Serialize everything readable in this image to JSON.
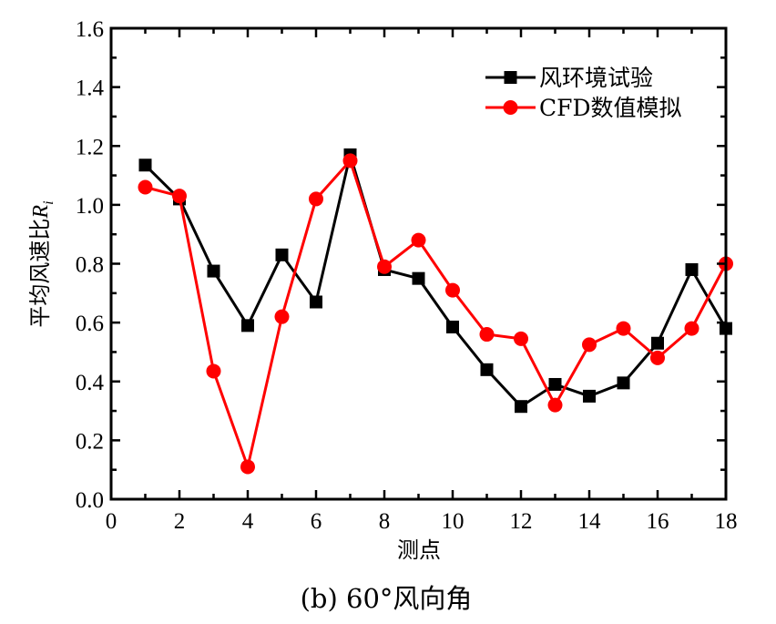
{
  "chart_data": {
    "type": "line",
    "title": "",
    "caption": "(b) 60°风向角",
    "xlabel": "测点",
    "ylabel_main": "平均风速比",
    "ylabel_symbol": "R",
    "ylabel_subscript": "i",
    "xlim": [
      0,
      18.0
    ],
    "ylim": [
      0.0,
      1.6
    ],
    "x_ticks": [
      0,
      2,
      4,
      6,
      8,
      10,
      12,
      14,
      16,
      18
    ],
    "x_tick_labels": [
      "0",
      "2",
      "4",
      "6",
      "8",
      "10",
      "12",
      "14",
      "16",
      "18"
    ],
    "y_ticks": [
      0.0,
      0.2,
      0.4,
      0.6,
      0.8,
      1.0,
      1.2,
      1.4,
      1.6
    ],
    "y_tick_labels": [
      "0.0",
      "0.2",
      "0.4",
      "0.6",
      "0.8",
      "1.0",
      "1.2",
      "1.4",
      "1.6"
    ],
    "x_minor_step": 1,
    "y_minor_step": 0.1,
    "grid": false,
    "legend_position": "top-right",
    "x": [
      1,
      2,
      3,
      4,
      5,
      6,
      7,
      8,
      9,
      10,
      11,
      12,
      13,
      14,
      15,
      16,
      17,
      18
    ],
    "series": [
      {
        "name": "风环境试验",
        "color": "#000000",
        "marker": "square",
        "values": [
          1.135,
          1.02,
          0.775,
          0.59,
          0.83,
          0.67,
          1.17,
          0.78,
          0.75,
          0.585,
          0.44,
          0.315,
          0.39,
          0.35,
          0.395,
          0.53,
          0.78,
          0.58
        ]
      },
      {
        "name": "CFD数值模拟",
        "color": "#ff0000",
        "marker": "circle",
        "values": [
          1.06,
          1.03,
          0.435,
          0.11,
          0.62,
          1.02,
          1.15,
          0.79,
          0.88,
          0.71,
          0.56,
          0.545,
          0.32,
          0.525,
          0.58,
          0.48,
          0.58,
          0.8
        ]
      }
    ]
  }
}
